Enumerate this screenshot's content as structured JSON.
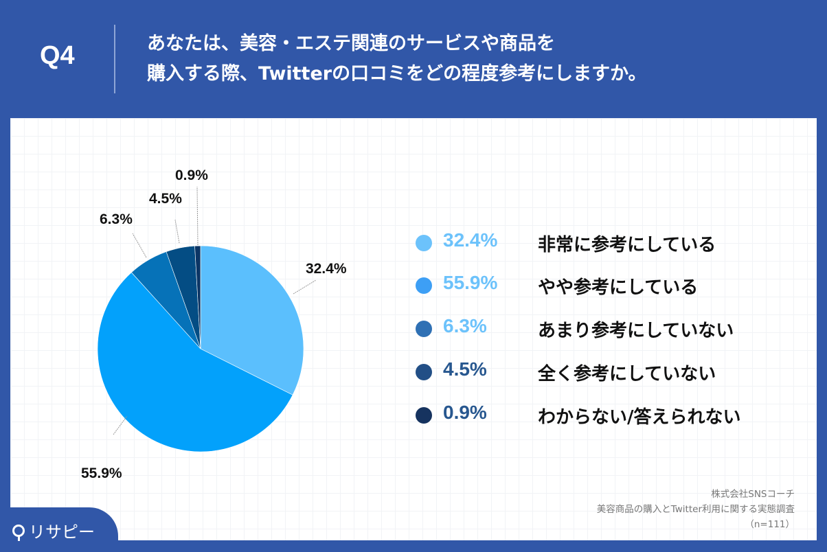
{
  "header": {
    "question_number": "Q4",
    "title_line1": "あなたは、美容・エステ関連のサービスや商品を",
    "title_line2": "購入する際、Twitterの口コミをどの程度参考にしますか。"
  },
  "colors": {
    "background": "#3157a8",
    "slice1": "#5bbffd",
    "slice2": "#03a1fb",
    "slice3": "#0672b8",
    "slice4": "#044d84",
    "slice5": "#0b3565",
    "legend_pct_light": "#6cc2fb",
    "legend_pct_dark": "#27578f"
  },
  "chart_data": {
    "type": "pie",
    "title": "あなたは、美容・エステ関連のサービスや商品を購入する際、Twitterの口コミをどの程度参考にしますか。",
    "categories": [
      "非常に参考にしている",
      "やや参考にしている",
      "あまり参考にしていない",
      "全く参考にしていない",
      "わからない/答えられない"
    ],
    "values": [
      32.4,
      55.9,
      6.3,
      4.5,
      0.9
    ],
    "labels": [
      "32.4%",
      "55.9%",
      "6.3%",
      "4.5%",
      "0.9%"
    ],
    "legend_position": "right",
    "n": 111
  },
  "legend": [
    {
      "pct": "32.4%",
      "label": "非常に参考にしている",
      "dot": "#6cc2fb",
      "pct_color": "#6cc2fb"
    },
    {
      "pct": "55.9%",
      "label": "やや参考にしている",
      "dot": "#3d9ff5",
      "pct_color": "#6cc2fb"
    },
    {
      "pct": "6.3%",
      "label": "あまり参考にしていない",
      "dot": "#2f70b4",
      "pct_color": "#6cc2fb"
    },
    {
      "pct": "4.5%",
      "label": "全く参考にしていない",
      "dot": "#224f86",
      "pct_color": "#27578f"
    },
    {
      "pct": "0.9%",
      "label": "わからない/答えられない",
      "dot": "#16335f",
      "pct_color": "#27578f"
    }
  ],
  "source": {
    "company": "株式会社SNSコーチ",
    "survey": "美容商品の購入とTwitter利用に関する実態調査",
    "sample": "（n=111）"
  },
  "logo": {
    "text": "リサピー"
  }
}
